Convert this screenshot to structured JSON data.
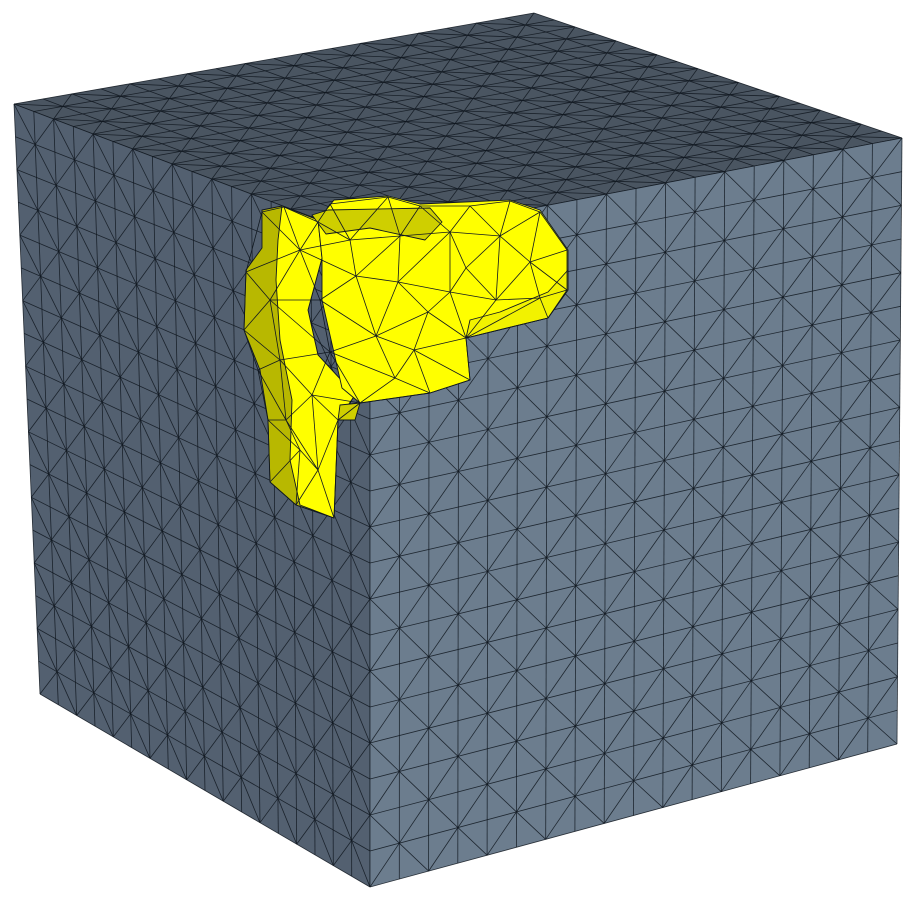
{
  "scene": {
    "object": "cube",
    "rendering": "triangulated-surface-mesh",
    "grid_divisions": 18,
    "colors": {
      "background": "#ffffff",
      "top_face": "#4a5561",
      "left_face": "#536070",
      "right_face": "#6c7d8e",
      "mesh_edge": "#111820",
      "region_main": "#ffff00",
      "region_light": "#f2f200",
      "region_shade": "#cfcf00",
      "region_dark": "#b8b800"
    }
  }
}
